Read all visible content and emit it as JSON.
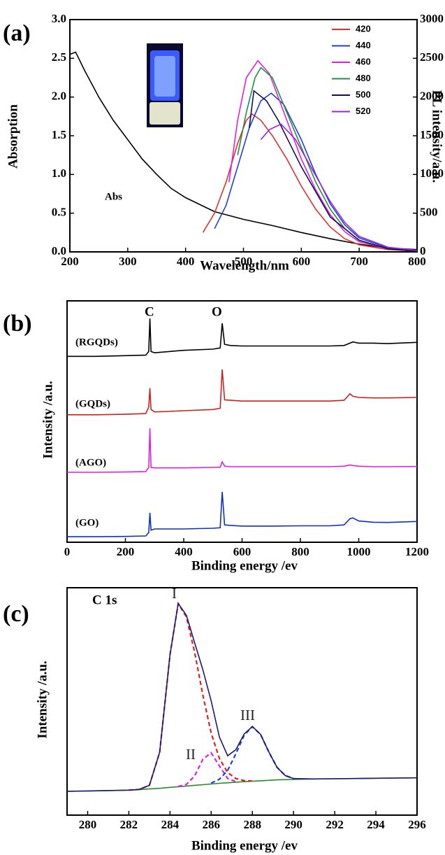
{
  "chart_data": [
    {
      "type": "line",
      "panel_label": "(a)",
      "xlabel": "Wavelength/nm",
      "ylabel": "Absorption",
      "y2label": "PL intensity/a.u.",
      "xlim": [
        200,
        800
      ],
      "xticks": [
        200,
        300,
        400,
        500,
        600,
        700,
        800
      ],
      "ylim": [
        0,
        3
      ],
      "yticks": [
        {
          "value": 0,
          "label": "0.0"
        },
        0.5,
        {
          "value": 1,
          "label": "1.0"
        },
        1.5,
        {
          "value": 2,
          "label": "2.0"
        },
        2.5,
        {
          "value": 3,
          "label": "3.0"
        }
      ],
      "y2lim": [
        0,
        3000
      ],
      "y2ticks": [
        0,
        500,
        1000,
        1500,
        2000,
        2500,
        3000
      ],
      "legend": "upper right",
      "series": [
        {
          "name": "Abs",
          "color": "#000000",
          "label_on_curve": true,
          "x": [
            200,
            210,
            225,
            250,
            275,
            300,
            325,
            350,
            375,
            400,
            450,
            500,
            550,
            600,
            650,
            700,
            750,
            800
          ],
          "values": [
            2.55,
            2.58,
            2.35,
            2.0,
            1.7,
            1.45,
            1.2,
            1.0,
            0.82,
            0.7,
            0.52,
            0.42,
            0.34,
            0.25,
            0.17,
            0.1,
            0.05,
            0.03
          ]
        },
        {
          "name": "420",
          "color": "#e03030",
          "axis": "y2",
          "x": [
            430,
            450,
            470,
            490,
            505,
            515,
            530,
            550,
            575,
            600,
            625,
            650,
            675,
            700,
            750,
            800
          ],
          "values": [
            250,
            500,
            900,
            1400,
            1700,
            1780,
            1700,
            1500,
            1200,
            850,
            550,
            320,
            170,
            90,
            30,
            10
          ]
        },
        {
          "name": "440",
          "color": "#2040d0",
          "axis": "y2",
          "x": [
            450,
            470,
            490,
            510,
            530,
            548,
            570,
            600,
            625,
            650,
            675,
            700,
            750,
            800
          ],
          "values": [
            300,
            600,
            1100,
            1600,
            1950,
            2050,
            1900,
            1450,
            1000,
            620,
            350,
            180,
            50,
            15
          ]
        },
        {
          "name": "460",
          "color": "#e020e0",
          "axis": "y2",
          "x": [
            475,
            490,
            505,
            525,
            545,
            575,
            600,
            625,
            650,
            675,
            700,
            750,
            800
          ],
          "values": [
            900,
            1700,
            2250,
            2470,
            2300,
            1700,
            1200,
            800,
            480,
            260,
            130,
            40,
            10
          ]
        },
        {
          "name": "480",
          "color": "#209040",
          "axis": "y2",
          "x": [
            490,
            505,
            520,
            530,
            550,
            575,
            600,
            625,
            650,
            675,
            700,
            750,
            800
          ],
          "values": [
            1250,
            1800,
            2250,
            2380,
            2250,
            1800,
            1350,
            900,
            550,
            300,
            150,
            40,
            15
          ]
        },
        {
          "name": "500",
          "color": "#101060",
          "axis": "y2",
          "x": [
            510,
            518,
            540,
            560,
            600,
            650,
            700,
            750,
            800
          ],
          "values": [
            1600,
            2080,
            1950,
            1700,
            1100,
            450,
            150,
            40,
            10
          ]
        },
        {
          "name": "520",
          "color": "#a020e0",
          "axis": "y2",
          "x": [
            530,
            545,
            565,
            590,
            620,
            650,
            675,
            700,
            750,
            800
          ],
          "values": [
            1450,
            1580,
            1650,
            1450,
            1050,
            650,
            380,
            200,
            60,
            20
          ]
        }
      ]
    },
    {
      "type": "line",
      "panel_label": "(b)",
      "xlabel": "Binding energy /ev",
      "ylabel": "Intensity /a.u.",
      "xlim": [
        0,
        1200
      ],
      "xticks": [
        0,
        200,
        400,
        600,
        800,
        1000,
        1200
      ],
      "ylim": [
        0,
        100
      ],
      "annotations": [
        "C",
        "O"
      ],
      "x": [
        0,
        100,
        200,
        270,
        280,
        284,
        288,
        300,
        350,
        400,
        500,
        525,
        532,
        540,
        560,
        600,
        700,
        800,
        900,
        950,
        970,
        980,
        1000,
        1050,
        1100,
        1200
      ],
      "series": [
        {
          "name": "(RGQDs)",
          "color": "#000000",
          "label_on_curve": true,
          "values": [
            77,
            77,
            77.3,
            77.5,
            79,
            92.7,
            79,
            78.5,
            79,
            79.5,
            80,
            80.5,
            90.7,
            82,
            81.5,
            81.3,
            81.3,
            81.3,
            81.3,
            81.5,
            82.5,
            83,
            82.5,
            82.5,
            82.3,
            82.8
          ]
        },
        {
          "name": "(GQDs)",
          "color": "#d02020",
          "label_on_curve": true,
          "values": [
            52.8,
            52.8,
            53,
            53.3,
            56,
            63.8,
            55,
            54,
            54.2,
            54.5,
            55,
            55.5,
            71.6,
            59,
            58.8,
            58.5,
            58.5,
            58.5,
            58.5,
            58.8,
            61.5,
            60.5,
            60,
            59.8,
            59.8,
            60
          ]
        },
        {
          "name": "(AGO)",
          "color": "#e020e0",
          "label_on_curve": true,
          "values": [
            29,
            29,
            29.1,
            29.3,
            31,
            47.2,
            31,
            30.8,
            30.8,
            30.8,
            31,
            31.1,
            33.3,
            31.5,
            31.3,
            31.3,
            31.3,
            31.3,
            31.3,
            31.5,
            32,
            31.8,
            31.5,
            31.3,
            31.3,
            31.4
          ]
        },
        {
          "name": "(GO)",
          "color": "#1030c0",
          "label_on_curve": true,
          "values": [
            2.3,
            2.3,
            2.4,
            2.6,
            4,
            12.2,
            5,
            5.5,
            5.5,
            5.5,
            5.8,
            6,
            20.9,
            7.2,
            7,
            6.7,
            6.7,
            6.8,
            6.8,
            7.2,
            9.8,
            10.1,
            8.8,
            8.3,
            8.2,
            8.6
          ]
        }
      ]
    },
    {
      "type": "line",
      "panel_label": "(c)",
      "xlabel": "Binding energy /ev",
      "ylabel": "Intensity /a.u.",
      "annotation": "C  1s",
      "xlim": [
        279,
        296
      ],
      "xticks": [
        280,
        282,
        284,
        286,
        288,
        290,
        292,
        294,
        296
      ],
      "ylim": [
        0,
        100
      ],
      "x": [
        279,
        280,
        281,
        282,
        282.5,
        283,
        283.5,
        284,
        284.4,
        284.8,
        285.2,
        285.6,
        286,
        286.4,
        286.8,
        287.2,
        287.6,
        288,
        288.4,
        288.8,
        289.2,
        289.6,
        290,
        291,
        292,
        293,
        294,
        295,
        296
      ],
      "series": [
        {
          "color": "#2a8a2a",
          "values": [
            10.5,
            10.6,
            10.8,
            11,
            11.2,
            11.5,
            11.8,
            12.2,
            12.5,
            12.8,
            13.1,
            13.4,
            13.7,
            14,
            14.2,
            14.5,
            14.7,
            14.9,
            15.1,
            15.3,
            15.5,
            15.6,
            15.7,
            15.9,
            16,
            16.1,
            16.2,
            16.3,
            16.4
          ]
        },
        {
          "name": "I",
          "color": "#e02020",
          "dash": true,
          "label_on_curve": true,
          "values": [
            null,
            null,
            null,
            11,
            11.3,
            13.1,
            27.7,
            70.6,
            93,
            87.1,
            71.5,
            52.6,
            36.1,
            24.9,
            18.7,
            16.1,
            15.2,
            15,
            null,
            null,
            null,
            null,
            null,
            null,
            null,
            null,
            null,
            null,
            null
          ]
        },
        {
          "name": "II",
          "color": "#e020e0",
          "dash": true,
          "label_on_curve": true,
          "values": [
            null,
            null,
            null,
            null,
            null,
            null,
            null,
            null,
            12.6,
            13.5,
            17.3,
            24.6,
            27.4,
            21.6,
            16.1,
            14.7,
            null,
            null,
            null,
            null,
            null,
            null,
            null,
            null,
            null,
            null,
            null,
            null,
            null
          ]
        },
        {
          "name": "III",
          "color": "#2040e0",
          "dash": true,
          "label_on_curve": true,
          "values": [
            null,
            null,
            null,
            null,
            null,
            null,
            null,
            null,
            null,
            null,
            null,
            null,
            14.1,
            15.8,
            19.7,
            27,
            35.1,
            38.9,
            35.5,
            27.8,
            21,
            17.4,
            16.1,
            null,
            null,
            null,
            null,
            null,
            null
          ]
        },
        {
          "color": "#1a1a70",
          "values": [
            10.5,
            10.6,
            10.8,
            11,
            11.3,
            13.1,
            27.7,
            70.6,
            93.1,
            87.8,
            75.7,
            63.8,
            50.2,
            34.3,
            26.1,
            28.8,
            35.6,
            39,
            35.5,
            27.8,
            21,
            17.4,
            16.1,
            15.9,
            16,
            16.1,
            16.2,
            16.3,
            16.4
          ]
        }
      ]
    }
  ]
}
